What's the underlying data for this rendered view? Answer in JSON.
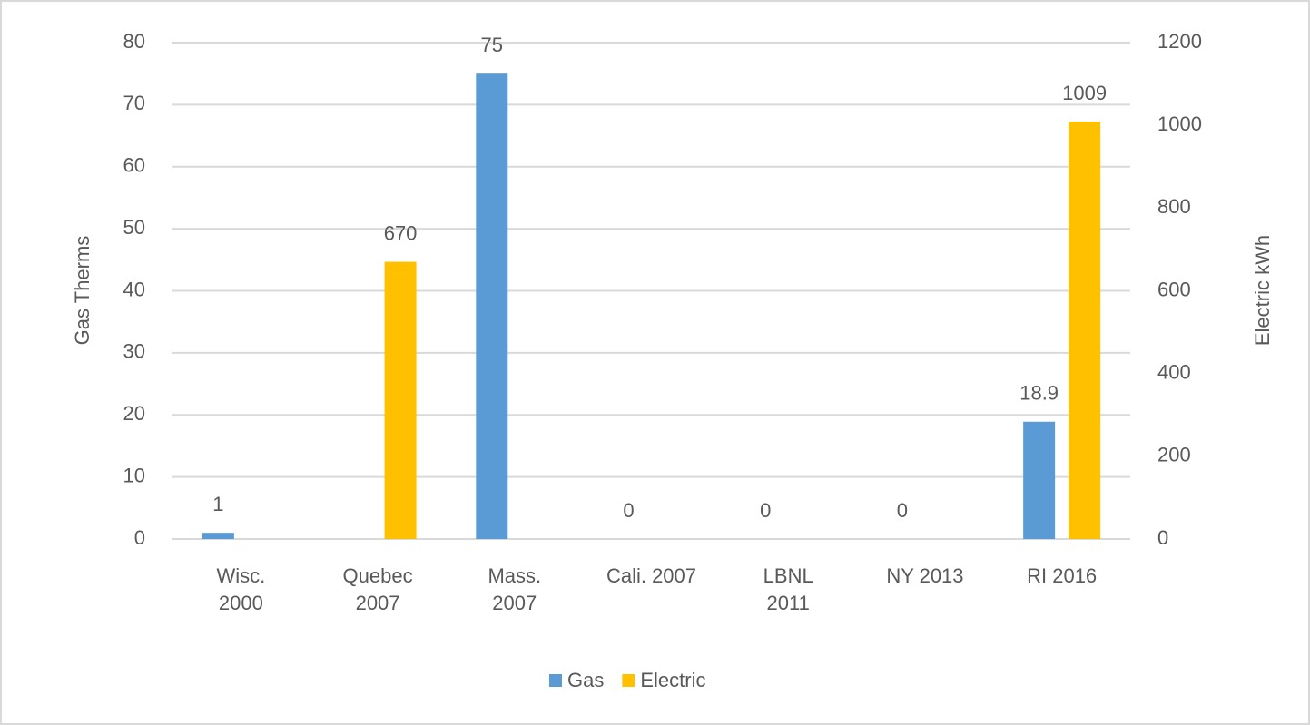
{
  "chart_data": {
    "type": "bar",
    "categories": [
      "Wisc. 2000",
      "Quebec 2007",
      "Mass. 2007",
      "Cali. 2007",
      "LBNL 2011",
      "NY 2013",
      "RI 2016"
    ],
    "series": [
      {
        "name": "Gas",
        "color": "#5b9bd5",
        "values": [
          1,
          null,
          75,
          0,
          0,
          0,
          18.9
        ]
      },
      {
        "name": "Electric",
        "color": "#ffc000",
        "axis": "y2",
        "values": [
          null,
          670,
          null,
          null,
          null,
          null,
          1009
        ]
      }
    ],
    "ylabel": "Gas Therms",
    "y2label": "Electric kWh",
    "ylim": [
      0,
      80
    ],
    "yticks": [
      0,
      10,
      20,
      30,
      40,
      50,
      60,
      70,
      80
    ],
    "y2lim": [
      0,
      1200
    ],
    "y2ticks": [
      0,
      200,
      400,
      600,
      800,
      1000,
      1200
    ],
    "grid": true,
    "legend": "bottom"
  }
}
